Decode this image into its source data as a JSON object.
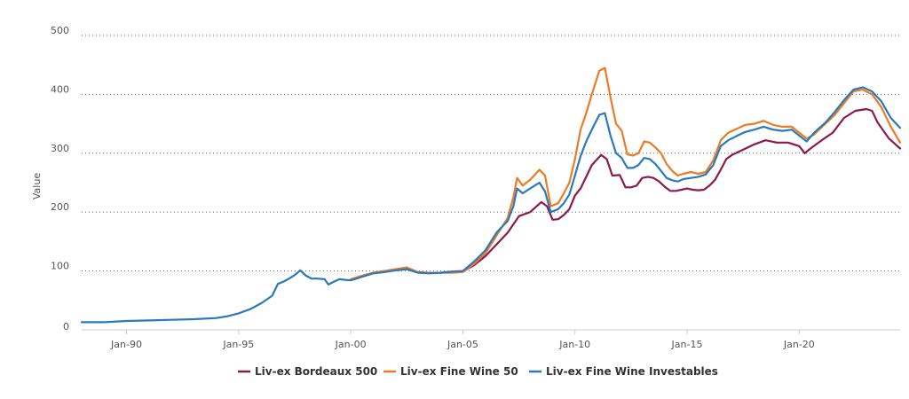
{
  "chart_data": {
    "type": "line",
    "title": "",
    "xlabel": "",
    "ylabel": "Value",
    "ylim": [
      0,
      500
    ],
    "xlim": [
      "1988-01",
      "2024-07"
    ],
    "y_ticks": [
      "0",
      "100",
      "200",
      "300",
      "400",
      "500"
    ],
    "x_ticks": [
      {
        "label": "Jan-90",
        "date": "1990-01"
      },
      {
        "label": "Jan-95",
        "date": "1995-01"
      },
      {
        "label": "Jan-00",
        "date": "2000-01"
      },
      {
        "label": "Jan-05",
        "date": "2005-01"
      },
      {
        "label": "Jan-10",
        "date": "2010-01"
      },
      {
        "label": "Jan-15",
        "date": "2015-01"
      },
      {
        "label": "Jan-20",
        "date": "2020-01"
      }
    ],
    "grid": true,
    "legend_position": "bottom-center",
    "series": [
      {
        "name": "Liv-ex Bordeaux 500",
        "color": "#8b1a4a",
        "points": [
          [
            "2004-01",
            97
          ],
          [
            "2005-01",
            99
          ],
          [
            "2005-07",
            110
          ],
          [
            "2006-01",
            125
          ],
          [
            "2006-07",
            145
          ],
          [
            "2007-01",
            165
          ],
          [
            "2007-07",
            193
          ],
          [
            "2008-01",
            200
          ],
          [
            "2008-07",
            217
          ],
          [
            "2008-10",
            210
          ],
          [
            "2009-01",
            187
          ],
          [
            "2009-04",
            188
          ],
          [
            "2009-07",
            195
          ],
          [
            "2009-10",
            205
          ],
          [
            "2010-01",
            228
          ],
          [
            "2010-04",
            240
          ],
          [
            "2010-07",
            260
          ],
          [
            "2010-10",
            280
          ],
          [
            "2011-03",
            297
          ],
          [
            "2011-06",
            290
          ],
          [
            "2011-09",
            262
          ],
          [
            "2012-01",
            263
          ],
          [
            "2012-04",
            242
          ],
          [
            "2012-07",
            242
          ],
          [
            "2012-10",
            245
          ],
          [
            "2013-01",
            258
          ],
          [
            "2013-04",
            260
          ],
          [
            "2013-07",
            258
          ],
          [
            "2013-10",
            252
          ],
          [
            "2014-01",
            243
          ],
          [
            "2014-04",
            236
          ],
          [
            "2014-07",
            236
          ],
          [
            "2014-10",
            238
          ],
          [
            "2015-01",
            240
          ],
          [
            "2015-04",
            238
          ],
          [
            "2015-07",
            237
          ],
          [
            "2015-10",
            238
          ],
          [
            "2016-01",
            245
          ],
          [
            "2016-04",
            255
          ],
          [
            "2016-07",
            272
          ],
          [
            "2016-10",
            290
          ],
          [
            "2017-01",
            297
          ],
          [
            "2017-07",
            306
          ],
          [
            "2018-01",
            315
          ],
          [
            "2018-07",
            322
          ],
          [
            "2019-01",
            318
          ],
          [
            "2019-07",
            318
          ],
          [
            "2020-01",
            312
          ],
          [
            "2020-04",
            300
          ],
          [
            "2020-07",
            308
          ],
          [
            "2021-01",
            322
          ],
          [
            "2021-07",
            335
          ],
          [
            "2022-01",
            360
          ],
          [
            "2022-07",
            372
          ],
          [
            "2023-01",
            375
          ],
          [
            "2023-04",
            372
          ],
          [
            "2023-07",
            352
          ],
          [
            "2024-01",
            325
          ],
          [
            "2024-07",
            308
          ]
        ]
      },
      {
        "name": "Liv-ex Fine Wine 50",
        "color": "#ec7b24",
        "points": [
          [
            "2000-01",
            86
          ],
          [
            "2000-07",
            92
          ],
          [
            "2001-01",
            97
          ],
          [
            "2001-07",
            100
          ],
          [
            "2002-01",
            103
          ],
          [
            "2002-07",
            106
          ],
          [
            "2003-01",
            98
          ],
          [
            "2003-07",
            97
          ],
          [
            "2004-01",
            97
          ],
          [
            "2004-07",
            97
          ],
          [
            "2005-01",
            98
          ],
          [
            "2005-07",
            112
          ],
          [
            "2006-01",
            130
          ],
          [
            "2006-07",
            160
          ],
          [
            "2007-01",
            190
          ],
          [
            "2007-04",
            225
          ],
          [
            "2007-06",
            258
          ],
          [
            "2007-09",
            245
          ],
          [
            "2008-01",
            255
          ],
          [
            "2008-06",
            272
          ],
          [
            "2008-09",
            262
          ],
          [
            "2008-12",
            210
          ],
          [
            "2009-04",
            215
          ],
          [
            "2009-07",
            232
          ],
          [
            "2009-10",
            250
          ],
          [
            "2010-01",
            290
          ],
          [
            "2010-04",
            340
          ],
          [
            "2010-07",
            368
          ],
          [
            "2010-10",
            400
          ],
          [
            "2011-02",
            440
          ],
          [
            "2011-05",
            445
          ],
          [
            "2011-08",
            395
          ],
          [
            "2011-11",
            350
          ],
          [
            "2012-02",
            338
          ],
          [
            "2012-05",
            298
          ],
          [
            "2012-08",
            296
          ],
          [
            "2012-11",
            300
          ],
          [
            "2013-02",
            320
          ],
          [
            "2013-05",
            318
          ],
          [
            "2013-08",
            310
          ],
          [
            "2013-11",
            300
          ],
          [
            "2014-02",
            282
          ],
          [
            "2014-05",
            270
          ],
          [
            "2014-08",
            262
          ],
          [
            "2014-11",
            265
          ],
          [
            "2015-03",
            268
          ],
          [
            "2015-07",
            265
          ],
          [
            "2015-11",
            268
          ],
          [
            "2016-03",
            288
          ],
          [
            "2016-07",
            322
          ],
          [
            "2016-11",
            335
          ],
          [
            "2017-04",
            342
          ],
          [
            "2017-08",
            348
          ],
          [
            "2018-01",
            350
          ],
          [
            "2018-06",
            355
          ],
          [
            "2018-11",
            348
          ],
          [
            "2019-04",
            345
          ],
          [
            "2019-09",
            345
          ],
          [
            "2020-01",
            335
          ],
          [
            "2020-05",
            325
          ],
          [
            "2020-09",
            332
          ],
          [
            "2021-03",
            350
          ],
          [
            "2021-08",
            365
          ],
          [
            "2022-01",
            385
          ],
          [
            "2022-06",
            405
          ],
          [
            "2022-11",
            408
          ],
          [
            "2023-04",
            400
          ],
          [
            "2023-09",
            378
          ],
          [
            "2024-02",
            345
          ],
          [
            "2024-07",
            318
          ]
        ]
      },
      {
        "name": "Liv-ex Fine Wine Investables",
        "color": "#2a78bd",
        "points": [
          [
            "1988-01",
            13
          ],
          [
            "1989-01",
            13
          ],
          [
            "1990-01",
            15
          ],
          [
            "1991-01",
            16
          ],
          [
            "1992-01",
            17
          ],
          [
            "1993-01",
            18
          ],
          [
            "1994-01",
            20
          ],
          [
            "1994-07",
            23
          ],
          [
            "1995-01",
            28
          ],
          [
            "1995-07",
            35
          ],
          [
            "1996-01",
            45
          ],
          [
            "1996-07",
            58
          ],
          [
            "1996-10",
            78
          ],
          [
            "1997-01",
            82
          ],
          [
            "1997-04",
            87
          ],
          [
            "1997-07",
            93
          ],
          [
            "1997-10",
            101
          ],
          [
            "1998-01",
            92
          ],
          [
            "1998-04",
            87
          ],
          [
            "1998-07",
            87
          ],
          [
            "1998-11",
            86
          ],
          [
            "1999-01",
            77
          ],
          [
            "1999-04",
            82
          ],
          [
            "1999-07",
            86
          ],
          [
            "1999-10",
            85
          ],
          [
            "2000-01",
            84
          ],
          [
            "2000-07",
            90
          ],
          [
            "2001-01",
            96
          ],
          [
            "2001-07",
            98
          ],
          [
            "2002-01",
            101
          ],
          [
            "2002-07",
            103
          ],
          [
            "2003-01",
            97
          ],
          [
            "2003-07",
            96
          ],
          [
            "2004-01",
            97
          ],
          [
            "2004-07",
            99
          ],
          [
            "2005-01",
            100
          ],
          [
            "2005-07",
            116
          ],
          [
            "2006-01",
            135
          ],
          [
            "2006-07",
            165
          ],
          [
            "2007-01",
            185
          ],
          [
            "2007-04",
            210
          ],
          [
            "2007-06",
            240
          ],
          [
            "2007-09",
            232
          ],
          [
            "2008-01",
            240
          ],
          [
            "2008-06",
            250
          ],
          [
            "2008-09",
            235
          ],
          [
            "2008-12",
            200
          ],
          [
            "2009-04",
            205
          ],
          [
            "2009-07",
            215
          ],
          [
            "2009-10",
            230
          ],
          [
            "2010-01",
            262
          ],
          [
            "2010-04",
            295
          ],
          [
            "2010-07",
            320
          ],
          [
            "2010-10",
            340
          ],
          [
            "2011-02",
            365
          ],
          [
            "2011-05",
            368
          ],
          [
            "2011-08",
            330
          ],
          [
            "2011-11",
            300
          ],
          [
            "2012-02",
            292
          ],
          [
            "2012-05",
            275
          ],
          [
            "2012-08",
            275
          ],
          [
            "2012-11",
            280
          ],
          [
            "2013-02",
            292
          ],
          [
            "2013-05",
            290
          ],
          [
            "2013-08",
            282
          ],
          [
            "2013-11",
            270
          ],
          [
            "2014-02",
            258
          ],
          [
            "2014-05",
            254
          ],
          [
            "2014-08",
            252
          ],
          [
            "2014-11",
            256
          ],
          [
            "2015-03",
            258
          ],
          [
            "2015-07",
            260
          ],
          [
            "2015-11",
            264
          ],
          [
            "2016-03",
            280
          ],
          [
            "2016-07",
            312
          ],
          [
            "2016-11",
            322
          ],
          [
            "2017-04",
            330
          ],
          [
            "2017-08",
            336
          ],
          [
            "2018-01",
            340
          ],
          [
            "2018-06",
            345
          ],
          [
            "2018-11",
            340
          ],
          [
            "2019-04",
            338
          ],
          [
            "2019-09",
            340
          ],
          [
            "2020-01",
            330
          ],
          [
            "2020-05",
            320
          ],
          [
            "2020-09",
            335
          ],
          [
            "2021-03",
            352
          ],
          [
            "2021-08",
            370
          ],
          [
            "2022-01",
            390
          ],
          [
            "2022-06",
            408
          ],
          [
            "2022-11",
            412
          ],
          [
            "2023-04",
            405
          ],
          [
            "2023-09",
            388
          ],
          [
            "2024-02",
            360
          ],
          [
            "2024-07",
            343
          ]
        ]
      }
    ]
  }
}
